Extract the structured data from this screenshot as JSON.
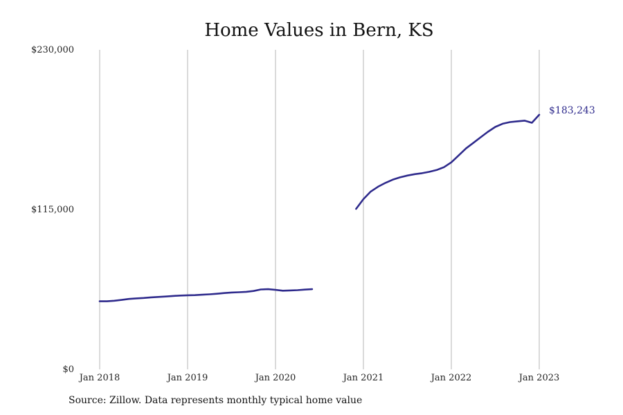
{
  "chart_data": {
    "type": "line",
    "title": "Home Values in Bern, KS",
    "source_note": "Source: Zillow. Data represents monthly typical home value",
    "ylim": [
      0,
      230000
    ],
    "y_ticks": [
      {
        "value": 0,
        "label": "$0"
      },
      {
        "value": 115000,
        "label": "$115,000"
      },
      {
        "value": 230000,
        "label": "$230,000"
      }
    ],
    "x_ticks": [
      {
        "value": "2018-01",
        "label": "Jan 2018"
      },
      {
        "value": "2019-01",
        "label": "Jan 2019"
      },
      {
        "value": "2020-01",
        "label": "Jan 2020"
      },
      {
        "value": "2021-01",
        "label": "Jan 2021"
      },
      {
        "value": "2022-01",
        "label": "Jan 2022"
      },
      {
        "value": "2023-01",
        "label": "Jan 2023"
      }
    ],
    "grid": "vertical",
    "line_color": "#2e2a8c",
    "end_label": "$183,243",
    "series": [
      {
        "segments": [
          {
            "x": [
              "2018-01",
              "2018-02",
              "2018-03",
              "2018-04",
              "2018-05",
              "2018-06",
              "2018-07",
              "2018-08",
              "2018-09",
              "2018-10",
              "2018-11",
              "2018-12",
              "2019-01",
              "2019-02",
              "2019-03",
              "2019-04",
              "2019-05",
              "2019-06",
              "2019-07",
              "2019-08",
              "2019-09",
              "2019-10",
              "2019-11",
              "2019-12",
              "2020-01",
              "2020-02",
              "2020-03",
              "2020-04",
              "2020-05",
              "2020-06"
            ],
            "y": [
              49000,
              49000,
              49400,
              50000,
              50700,
              51100,
              51400,
              51800,
              52100,
              52400,
              52800,
              53100,
              53300,
              53400,
              53700,
              54000,
              54400,
              54900,
              55300,
              55500,
              55800,
              56400,
              57500,
              57700,
              57200,
              56600,
              56800,
              57000,
              57400,
              57700
            ]
          },
          {
            "x": [
              "2020-12",
              "2021-01",
              "2021-02",
              "2021-03",
              "2021-04",
              "2021-05",
              "2021-06",
              "2021-07",
              "2021-08",
              "2021-09",
              "2021-10",
              "2021-11",
              "2021-12",
              "2022-01",
              "2022-02",
              "2022-03",
              "2022-04",
              "2022-05",
              "2022-06",
              "2022-07",
              "2022-08",
              "2022-09",
              "2022-10",
              "2022-11",
              "2022-12",
              "2023-01"
            ],
            "y": [
              115500,
              122500,
              128000,
              131500,
              134200,
              136500,
              138200,
              139500,
              140500,
              141200,
              142200,
              143500,
              145500,
              149000,
              154000,
              159000,
              163000,
              167000,
              171000,
              174500,
              176800,
              178000,
              178500,
              179000,
              177500,
              183243
            ]
          }
        ]
      }
    ]
  }
}
